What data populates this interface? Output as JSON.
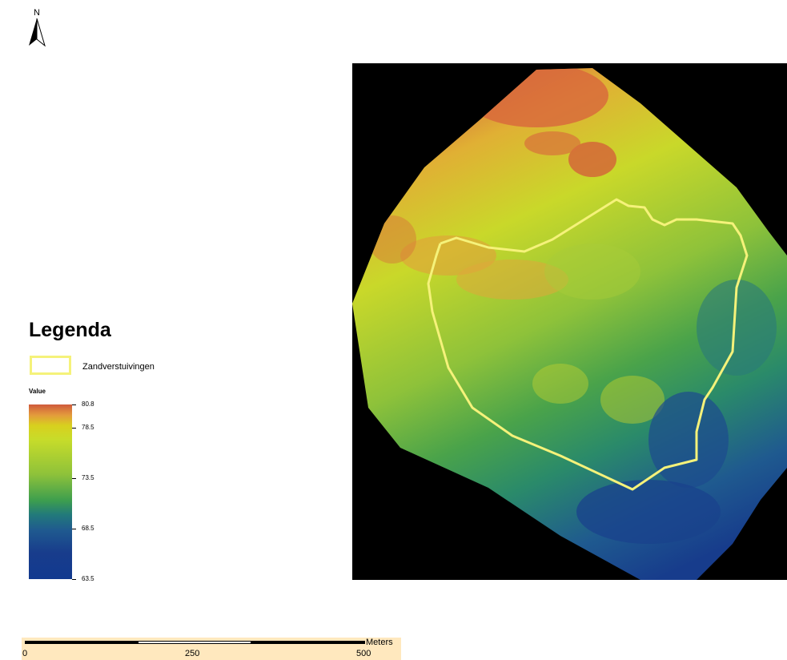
{
  "north_arrow": {
    "letter": "N",
    "icon": "north-arrow-icon"
  },
  "legend": {
    "title": "Legenda",
    "swatch_label": "Zandverstuivingen",
    "swatch_color": "#f5f27a",
    "value_title": "Value",
    "ramp_ticks": [
      {
        "label": "80.8",
        "value": 80.8
      },
      {
        "label": "78.5",
        "value": 78.5
      },
      {
        "label": "73.5",
        "value": 73.5
      },
      {
        "label": "68.5",
        "value": 68.5
      },
      {
        "label": "63.5",
        "value": 63.5
      }
    ],
    "ramp_min": 63.5,
    "ramp_max": 80.8
  },
  "scalebar": {
    "unit": "Meters",
    "labels": [
      "0",
      "250",
      "500"
    ]
  },
  "colors": {
    "background": "#000000",
    "high": "#cf5a3c",
    "mid_high": "#d8d01e",
    "mid": "#3d9e4e",
    "low": "#123a8f"
  }
}
